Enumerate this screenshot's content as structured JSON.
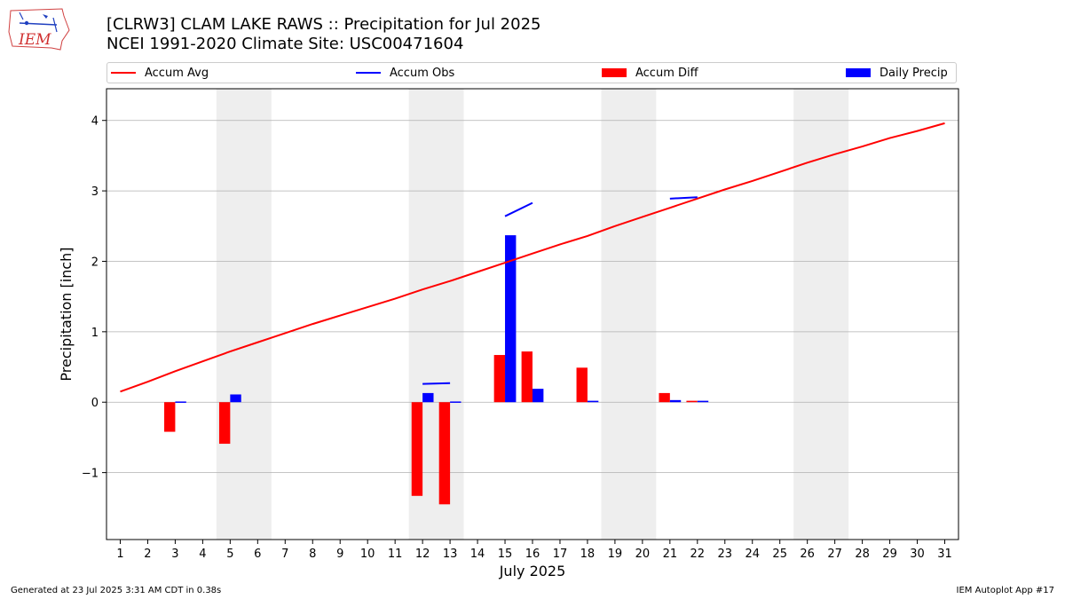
{
  "header": {
    "title_line1": "[CLRW3] CLAM LAKE RAWS :: Precipitation for Jul 2025",
    "title_line2": "NCEI 1991-2020 Climate Site: USC00471604",
    "logo_text": "IEM"
  },
  "footer": {
    "left": "Generated at 23 Jul 2025 3:31 AM CDT in 0.38s",
    "right": "IEM Autoplot App #17"
  },
  "chart_data": {
    "type": "bar",
    "xlabel": "July 2025",
    "ylabel": "Precipitation [inch]",
    "xlim": [
      0.5,
      31.5
    ],
    "ylim": [
      -1.95,
      4.45
    ],
    "yticks": [
      -1,
      0,
      1,
      2,
      3,
      4
    ],
    "ytick_labels": [
      "−1",
      "0",
      "1",
      "2",
      "3",
      "4"
    ],
    "x": [
      1,
      2,
      3,
      4,
      5,
      6,
      7,
      8,
      9,
      10,
      11,
      12,
      13,
      14,
      15,
      16,
      17,
      18,
      19,
      20,
      21,
      22,
      23,
      24,
      25,
      26,
      27,
      28,
      29,
      30,
      31
    ],
    "grid": "horizontal",
    "legend_position": "top",
    "weekend_shading": [
      [
        4.5,
        6.5
      ],
      [
        11.5,
        13.5
      ],
      [
        18.5,
        20.5
      ],
      [
        25.5,
        27.5
      ]
    ],
    "colors": {
      "accum_avg": "#ff0000",
      "accum_obs": "#0000ff",
      "accum_diff": "#ff0000",
      "daily_precip": "#0000ff",
      "weekend": "#eeeeee",
      "grid": "#b0b0b0"
    },
    "series": [
      {
        "name": "Accum Avg",
        "kind": "line",
        "values": [
          0.15,
          0.29,
          0.44,
          0.58,
          0.72,
          0.85,
          0.98,
          1.11,
          1.23,
          1.35,
          1.47,
          1.6,
          1.72,
          1.85,
          1.98,
          2.11,
          2.24,
          2.36,
          2.5,
          2.63,
          2.76,
          2.89,
          3.02,
          3.14,
          3.27,
          3.4,
          3.52,
          3.63,
          3.75,
          3.85,
          3.96
        ]
      },
      {
        "name": "Accum Obs",
        "kind": "line",
        "segments": [
          [
            [
              12,
              0.26
            ],
            [
              13,
              0.27
            ]
          ],
          [
            [
              15,
              2.64
            ],
            [
              16,
              2.83
            ]
          ],
          [
            [
              21,
              2.89
            ],
            [
              22,
              2.91
            ]
          ]
        ]
      },
      {
        "name": "Accum Diff",
        "kind": "bar",
        "values": [
          null,
          null,
          -0.42,
          null,
          -0.59,
          null,
          null,
          null,
          null,
          null,
          null,
          -1.33,
          -1.45,
          null,
          0.67,
          0.72,
          null,
          0.49,
          null,
          null,
          0.13,
          0.02,
          null,
          null,
          null,
          null,
          null,
          null,
          null,
          null,
          null
        ]
      },
      {
        "name": "Daily Precip",
        "kind": "bar",
        "values": [
          null,
          null,
          0.01,
          null,
          0.11,
          null,
          null,
          null,
          null,
          null,
          null,
          0.13,
          0.01,
          null,
          2.37,
          0.19,
          null,
          0.02,
          null,
          null,
          0.03,
          0.02,
          null,
          null,
          null,
          null,
          null,
          null,
          null,
          null,
          null
        ]
      }
    ]
  }
}
